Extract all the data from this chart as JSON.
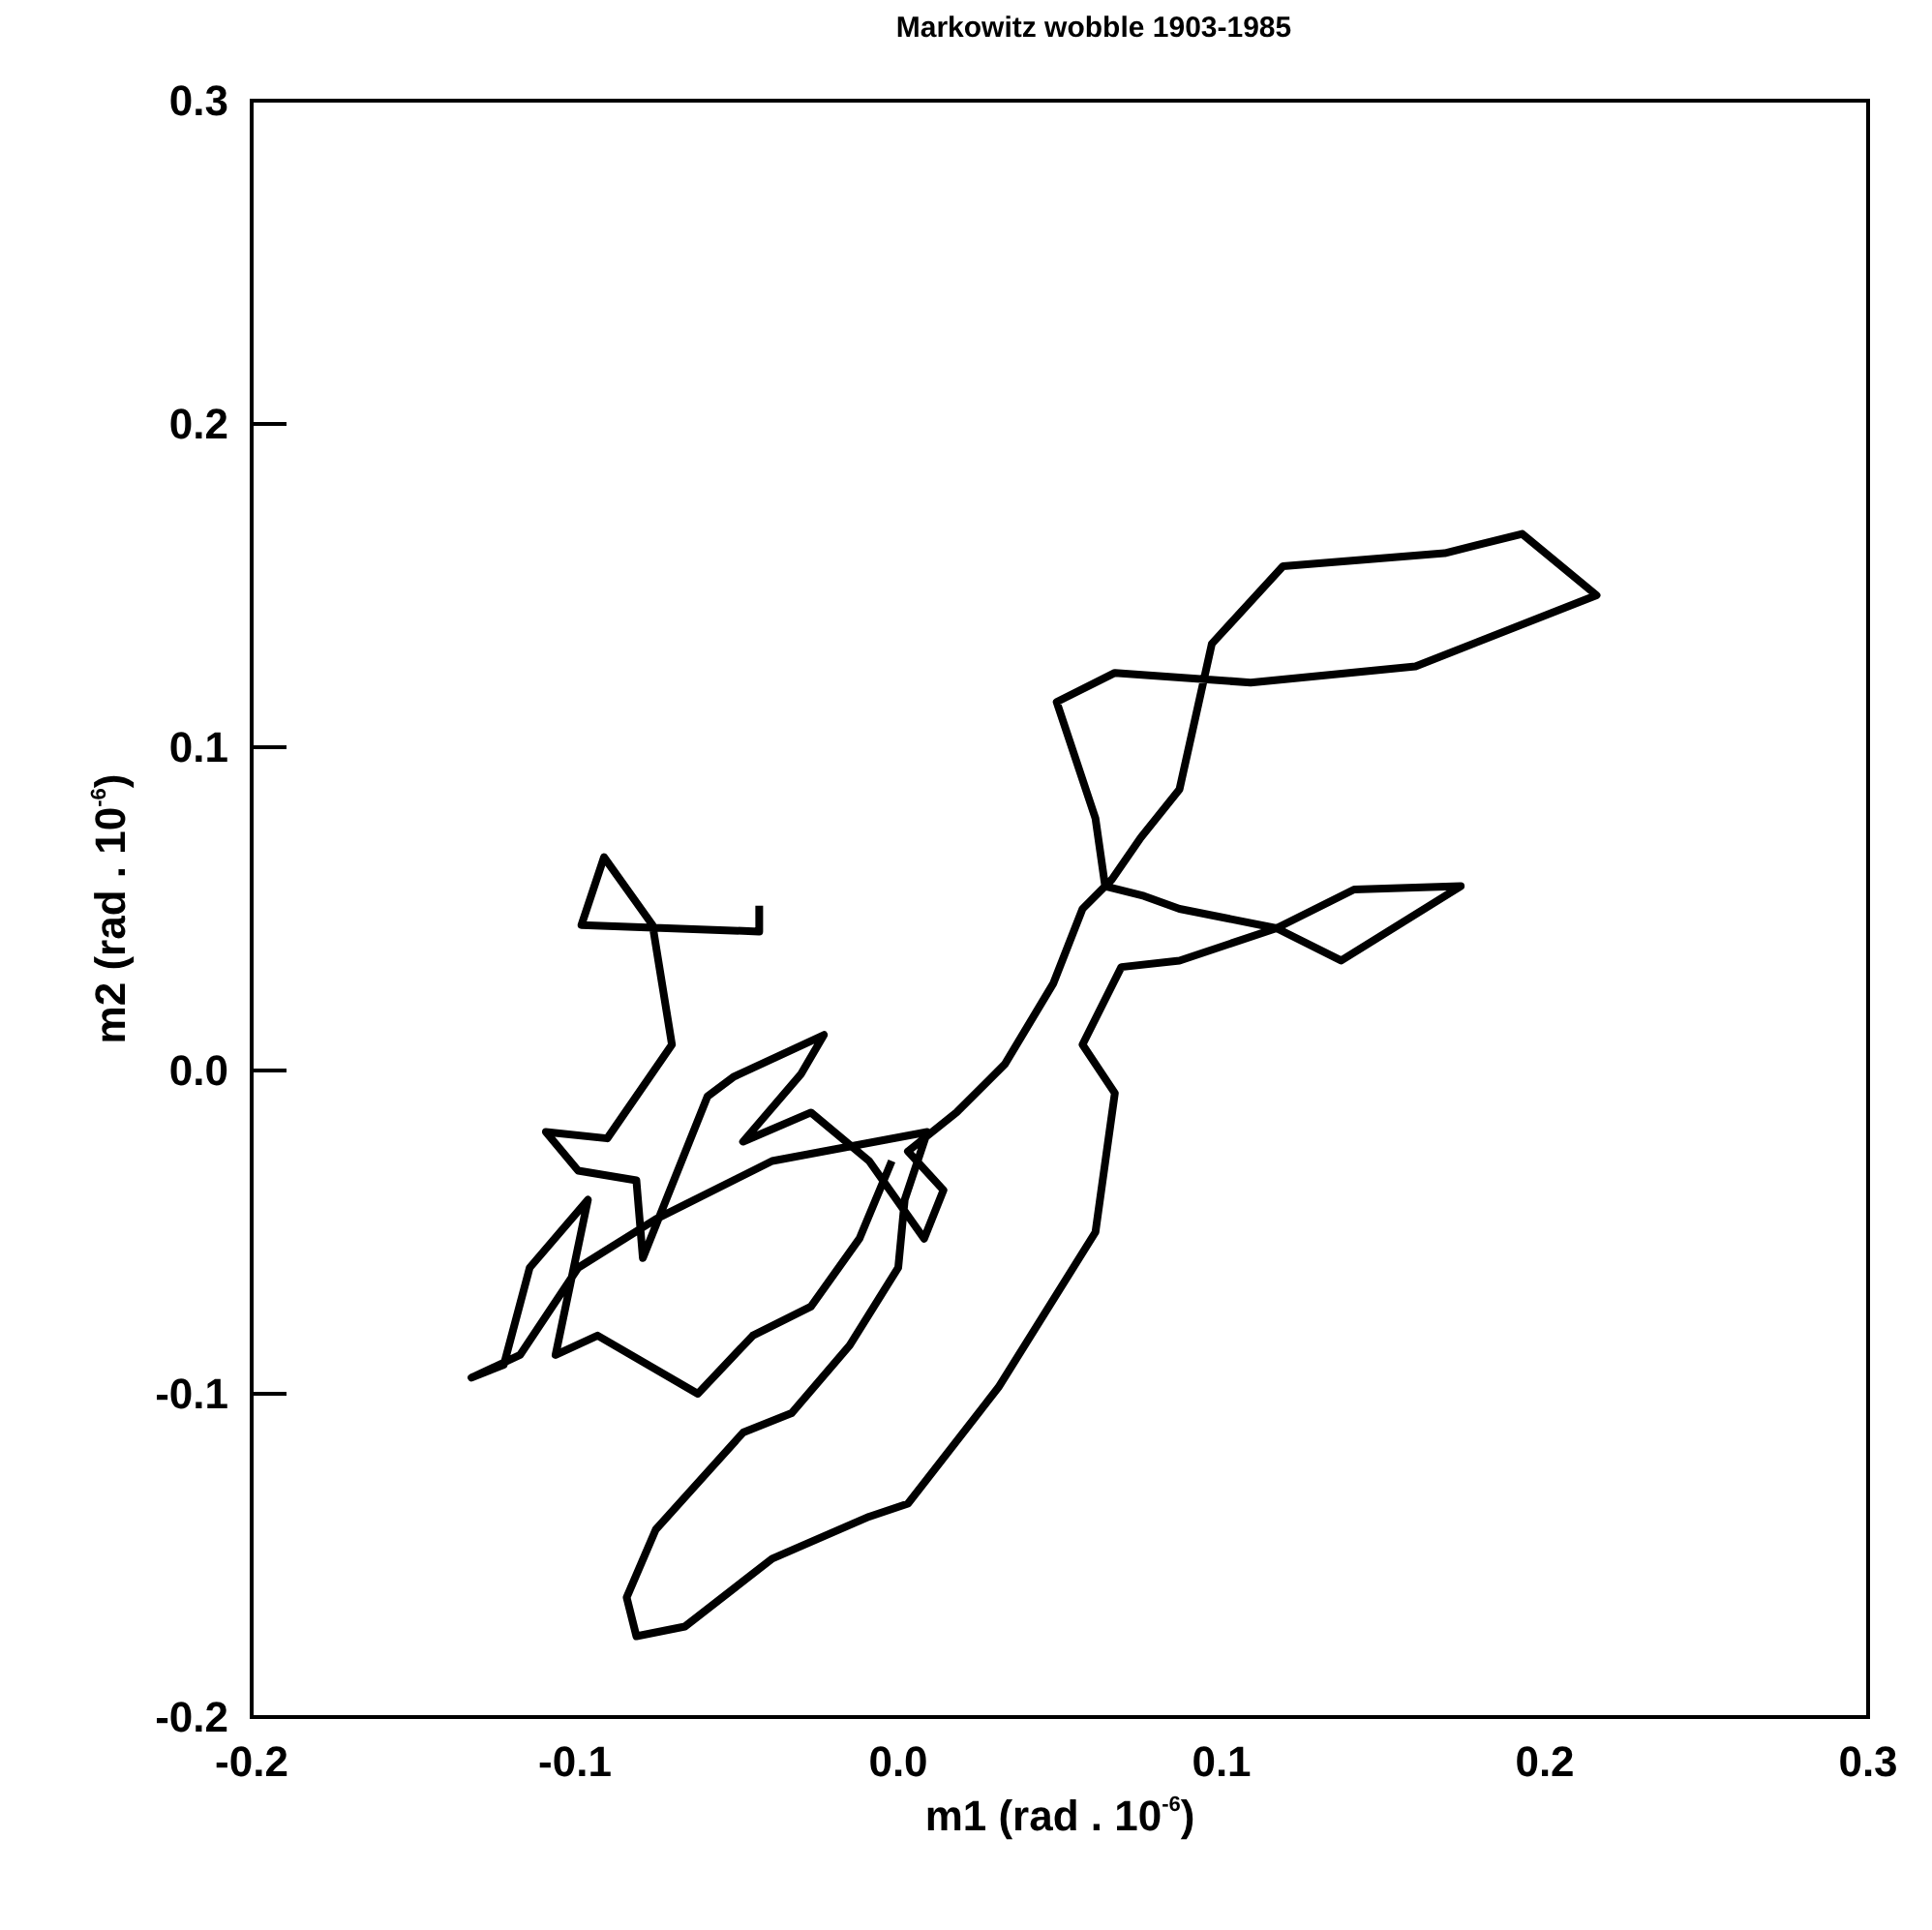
{
  "chart_data": {
    "type": "line",
    "title": "Markowitz wobble 1903-1985",
    "xlabel": "m1 (rad . 10$^{-6}$)",
    "ylabel": "m2 (rad . 10$^{-6}$)",
    "xlim": [
      -0.2,
      0.3
    ],
    "xticks": [
      -0.2,
      -0.1,
      {
        "value": 0,
        "label": "0.0"
      },
      0.1,
      0.2,
      0.3
    ],
    "ylim": [
      -0.2,
      0.3
    ],
    "yticks": [
      -0.2,
      -0.1,
      {
        "value": 0,
        "label": "0.0"
      },
      0.1,
      0.2,
      0.3
    ],
    "grid": false,
    "marker": "none",
    "line_style": "solid",
    "series": [
      {
        "color": "#000000",
        "x": [
          -0.043,
          -0.043,
          -0.098,
          -0.091,
          -0.076,
          -0.07,
          -0.09,
          -0.109,
          -0.099,
          -0.081,
          -0.079,
          -0.059,
          -0.051,
          -0.023,
          -0.03,
          -0.048,
          -0.027,
          -0.009,
          0.008,
          0.014,
          0.003,
          0.018,
          0.033,
          0.048,
          0.057,
          0.066,
          0.075,
          0.087,
          0.097,
          0.119,
          0.169,
          0.193,
          0.216,
          0.16,
          0.109,
          0.067,
          0.049,
          0.061,
          0.064,
          0.076,
          0.087,
          0.117,
          0.141,
          0.174,
          0.137,
          0.117,
          0.087,
          0.069,
          0.057,
          0.067,
          0.061,
          0.031,
          0.003,
          -0.009,
          -0.039,
          -0.066,
          -0.081,
          -0.084,
          -0.075,
          -0.048,
          -0.033,
          -0.015,
          0.0,
          0.002,
          0.009,
          -0.039,
          -0.075,
          -0.099,
          -0.117,
          -0.132,
          -0.122,
          -0.114,
          -0.096,
          -0.106,
          -0.093,
          -0.062,
          -0.045,
          -0.027,
          -0.012,
          -0.002
        ],
        "values": [
          0.051,
          0.043,
          0.045,
          0.066,
          0.045,
          0.008,
          -0.021,
          -0.019,
          -0.031,
          -0.034,
          -0.058,
          -0.008,
          -0.002,
          0.011,
          -0.001,
          -0.022,
          -0.013,
          -0.028,
          -0.052,
          -0.037,
          -0.025,
          -0.013,
          0.002,
          0.027,
          0.05,
          0.059,
          0.072,
          0.087,
          0.132,
          0.156,
          0.16,
          0.166,
          0.147,
          0.125,
          0.12,
          0.123,
          0.114,
          0.078,
          0.057,
          0.054,
          0.05,
          0.044,
          0.056,
          0.057,
          0.034,
          0.044,
          0.034,
          0.032,
          0.008,
          -0.007,
          -0.05,
          -0.098,
          -0.134,
          -0.138,
          -0.151,
          -0.172,
          -0.175,
          -0.163,
          -0.142,
          -0.112,
          -0.106,
          -0.085,
          -0.061,
          -0.04,
          -0.019,
          -0.028,
          -0.046,
          -0.061,
          -0.088,
          -0.095,
          -0.091,
          -0.061,
          -0.04,
          -0.088,
          -0.082,
          -0.1,
          -0.082,
          -0.073,
          -0.052,
          -0.028
        ]
      }
    ]
  }
}
